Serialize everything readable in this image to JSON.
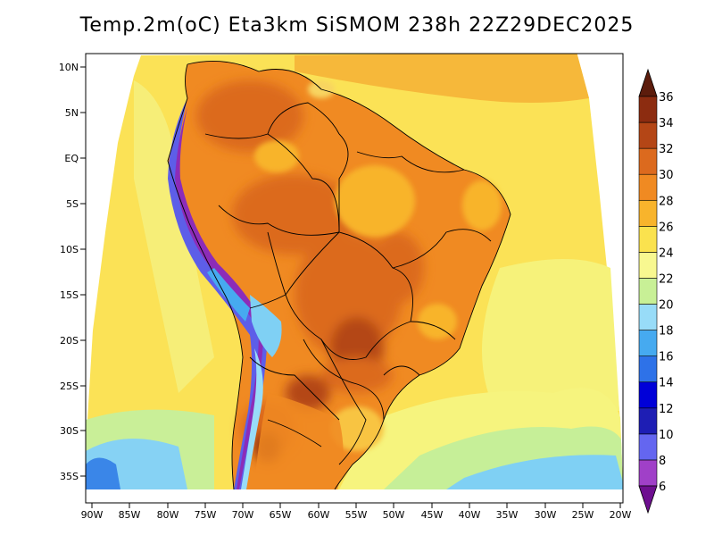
{
  "title": "Temp.2m(oC) Eta3km SiSMOM 238h 22Z29DEC2025",
  "map": {
    "variable": "2m temperature",
    "units": "oC",
    "lat_labels": [
      "10N",
      "5N",
      "EQ",
      "5S",
      "10S",
      "15S",
      "20S",
      "25S",
      "30S",
      "35S"
    ],
    "lon_labels": [
      "90W",
      "85W",
      "80W",
      "75W",
      "70W",
      "65W",
      "60W",
      "55W",
      "50W",
      "45W",
      "40W",
      "35W",
      "30W",
      "25W",
      "20W"
    ]
  },
  "colorbar": {
    "levels": [
      "6",
      "8",
      "10",
      "12",
      "14",
      "16",
      "18",
      "20",
      "22",
      "24",
      "26",
      "28",
      "30",
      "32",
      "34",
      "36"
    ],
    "colors": [
      "#6e0f90",
      "#a040c8",
      "#6466f0",
      "#1e1eb4",
      "#0000d8",
      "#2e72e8",
      "#46aaf0",
      "#98dcf8",
      "#c8f096",
      "#f8f890",
      "#fae24e",
      "#f8b42c",
      "#f08a22",
      "#dc6a1e",
      "#b44616",
      "#8c2c10",
      "#5c1c0c"
    ]
  }
}
